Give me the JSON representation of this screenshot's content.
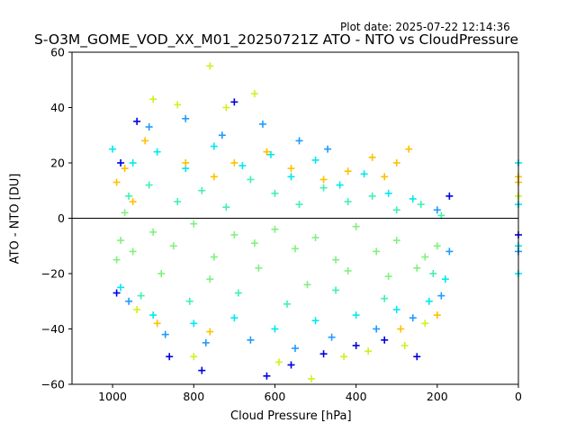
{
  "chart_data": {
    "type": "scatter",
    "plot_date": "Plot date: 2025-07-22 12:14:36",
    "title": "S-O3M_GOME_VOD_XX_M01_20250721Z ATO - NTO vs CloudPressure",
    "xlabel": "Cloud Pressure [hPa]",
    "ylabel": "ATO - NTO [DU]",
    "xlim": [
      1100,
      0
    ],
    "ylim": [
      -60,
      60
    ],
    "x_ticks": [
      1000,
      800,
      600,
      400,
      200,
      0
    ],
    "y_ticks": [
      -60,
      -40,
      -20,
      0,
      20,
      40,
      60
    ],
    "reference_line_y": 0,
    "grid": false,
    "marker": "+",
    "colors": [
      "#0000dd",
      "#1e9bff",
      "#00e8f0",
      "#40f0b0",
      "#80f080",
      "#d0f020",
      "#ffc000"
    ],
    "series": [
      {
        "color": "#80f080",
        "points": [
          [
            980,
            -8
          ],
          [
            950,
            -12
          ],
          [
            900,
            -5
          ],
          [
            850,
            -10
          ],
          [
            800,
            -2
          ],
          [
            750,
            -14
          ],
          [
            700,
            -6
          ],
          [
            650,
            -9
          ],
          [
            600,
            -4
          ],
          [
            550,
            -11
          ],
          [
            500,
            -7
          ],
          [
            450,
            -15
          ],
          [
            400,
            -3
          ],
          [
            350,
            -12
          ],
          [
            300,
            -8
          ],
          [
            250,
            -18
          ],
          [
            200,
            -10
          ],
          [
            970,
            2
          ],
          [
            880,
            -20
          ],
          [
            760,
            -22
          ],
          [
            640,
            -18
          ],
          [
            520,
            -24
          ],
          [
            420,
            -19
          ],
          [
            320,
            -21
          ],
          [
            230,
            -14
          ],
          [
            990,
            -15
          ]
        ]
      },
      {
        "color": "#40f0b0",
        "points": [
          [
            960,
            8
          ],
          [
            910,
            12
          ],
          [
            840,
            6
          ],
          [
            780,
            10
          ],
          [
            720,
            4
          ],
          [
            660,
            14
          ],
          [
            600,
            9
          ],
          [
            540,
            5
          ],
          [
            480,
            11
          ],
          [
            420,
            6
          ],
          [
            360,
            8
          ],
          [
            300,
            3
          ],
          [
            240,
            5
          ],
          [
            190,
            1
          ],
          [
            930,
            -28
          ],
          [
            810,
            -30
          ],
          [
            690,
            -27
          ],
          [
            570,
            -31
          ],
          [
            450,
            -26
          ],
          [
            330,
            -29
          ],
          [
            210,
            -20
          ]
        ]
      },
      {
        "color": "#00e8f0",
        "points": [
          [
            950,
            20
          ],
          [
            890,
            24
          ],
          [
            820,
            18
          ],
          [
            750,
            26
          ],
          [
            680,
            19
          ],
          [
            610,
            23
          ],
          [
            560,
            15
          ],
          [
            500,
            21
          ],
          [
            440,
            12
          ],
          [
            380,
            16
          ],
          [
            320,
            9
          ],
          [
            260,
            7
          ],
          [
            980,
            -25
          ],
          [
            900,
            -35
          ],
          [
            800,
            -38
          ],
          [
            700,
            -36
          ],
          [
            600,
            -40
          ],
          [
            500,
            -37
          ],
          [
            400,
            -35
          ],
          [
            300,
            -33
          ],
          [
            220,
            -30
          ],
          [
            180,
            -22
          ],
          [
            0,
            20
          ],
          [
            0,
            -20
          ],
          [
            0,
            5
          ],
          [
            0,
            -10
          ],
          [
            1000,
            25
          ]
        ]
      },
      {
        "color": "#1e9bff",
        "points": [
          [
            960,
            -30
          ],
          [
            870,
            -42
          ],
          [
            770,
            -45
          ],
          [
            660,
            -44
          ],
          [
            550,
            -47
          ],
          [
            460,
            -43
          ],
          [
            350,
            -40
          ],
          [
            260,
            -36
          ],
          [
            190,
            -28
          ],
          [
            170,
            -12
          ],
          [
            200,
            3
          ],
          [
            910,
            33
          ],
          [
            820,
            36
          ],
          [
            730,
            30
          ],
          [
            630,
            34
          ],
          [
            540,
            28
          ],
          [
            470,
            25
          ],
          [
            0,
            -12
          ]
        ]
      },
      {
        "color": "#0000dd",
        "points": [
          [
            990,
            -27
          ],
          [
            940,
            35
          ],
          [
            860,
            -50
          ],
          [
            780,
            -55
          ],
          [
            700,
            42
          ],
          [
            620,
            -57
          ],
          [
            560,
            -53
          ],
          [
            480,
            -49
          ],
          [
            400,
            -46
          ],
          [
            330,
            -44
          ],
          [
            250,
            -50
          ],
          [
            170,
            8
          ],
          [
            980,
            20
          ],
          [
            0,
            -6
          ]
        ]
      },
      {
        "color": "#d0f020",
        "points": [
          [
            900,
            43
          ],
          [
            800,
            -50
          ],
          [
            720,
            40
          ],
          [
            650,
            45
          ],
          [
            590,
            -52
          ],
          [
            510,
            -58
          ],
          [
            430,
            -50
          ],
          [
            370,
            -48
          ],
          [
            280,
            -46
          ],
          [
            230,
            -38
          ],
          [
            940,
            -33
          ],
          [
            840,
            41
          ],
          [
            760,
            55
          ],
          [
            0,
            8
          ]
        ]
      },
      {
        "color": "#ffc000",
        "points": [
          [
            990,
            13
          ],
          [
            970,
            18
          ],
          [
            950,
            6
          ],
          [
            920,
            28
          ],
          [
            820,
            20
          ],
          [
            750,
            15
          ],
          [
            700,
            20
          ],
          [
            620,
            24
          ],
          [
            560,
            18
          ],
          [
            480,
            14
          ],
          [
            420,
            17
          ],
          [
            360,
            22
          ],
          [
            330,
            15
          ],
          [
            300,
            20
          ],
          [
            270,
            25
          ],
          [
            890,
            -38
          ],
          [
            760,
            -41
          ],
          [
            290,
            -40
          ],
          [
            200,
            -35
          ],
          [
            0,
            13
          ],
          [
            0,
            15
          ]
        ]
      }
    ]
  }
}
